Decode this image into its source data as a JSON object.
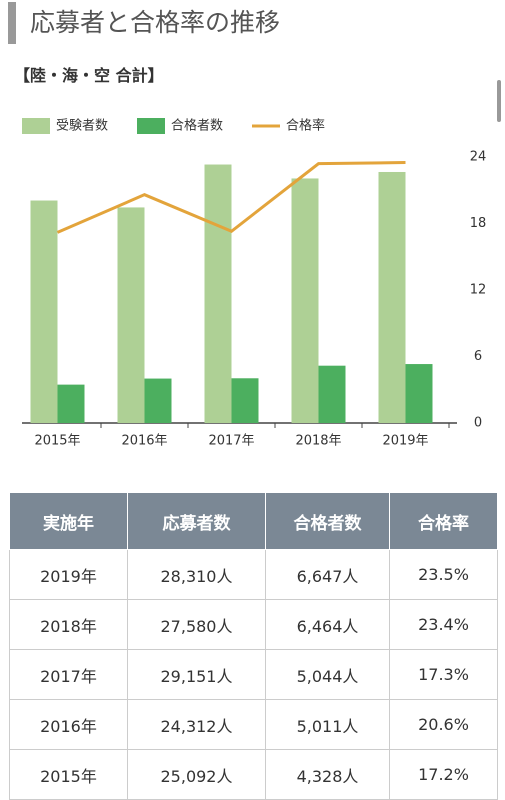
{
  "header": {
    "title": "応募者と合格率の推移",
    "subtitle": "【陸・海・空 合計】"
  },
  "chart_data": {
    "type": "bar",
    "categories": [
      "2015年",
      "2016年",
      "2017年",
      "2018年",
      "2019年"
    ],
    "series": [
      {
        "name": "受験者数",
        "color": "#aed095",
        "values": [
          25092,
          24312,
          29151,
          27580,
          28310
        ]
      },
      {
        "name": "合格者数",
        "color": "#4caf5f",
        "values": [
          4328,
          5011,
          5044,
          6464,
          6647
        ]
      },
      {
        "name": "合格率",
        "color": "#e3a43b",
        "type": "line",
        "axis": "y2",
        "values": [
          17.2,
          20.6,
          17.3,
          23.4,
          23.5
        ]
      }
    ],
    "ylim": [
      0,
      30000
    ],
    "y2lim": [
      0,
      24
    ],
    "y2ticks": [
      0,
      6,
      12,
      18,
      24
    ]
  },
  "table": {
    "header": [
      "実施年",
      "応募者数",
      "合格者数",
      "合格率"
    ],
    "rows": [
      [
        "2019年",
        "28,310人",
        "6,647人",
        "23.5%"
      ],
      [
        "2018年",
        "27,580人",
        "6,464人",
        "23.4%"
      ],
      [
        "2017年",
        "29,151人",
        "5,044人",
        "17.3%"
      ],
      [
        "2016年",
        "24,312人",
        "5,011人",
        "20.6%"
      ],
      [
        "2015年",
        "25,092人",
        "4,328人",
        "17.2%"
      ]
    ]
  }
}
